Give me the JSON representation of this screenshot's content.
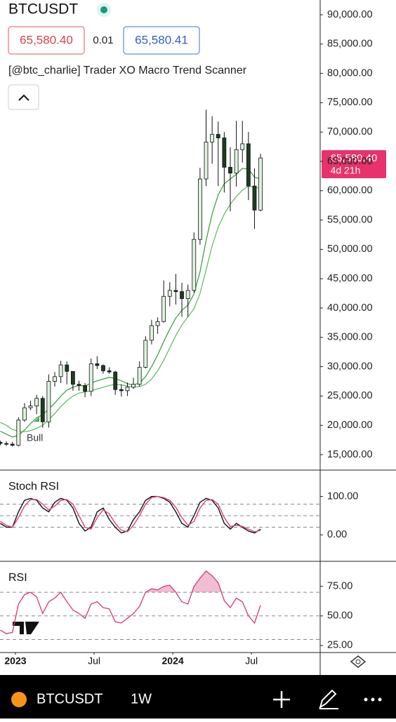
{
  "header": {
    "symbol": "BTCUSDT",
    "bid": "65,580.40",
    "spread": "0.01",
    "ask": "65,580.41",
    "indicator": "[@btc_charlie] Trader XO Macro Trend Scanner",
    "last_price": "65,580.40",
    "countdown": "4d 21h"
  },
  "chart_data": [
    {
      "type": "candlestick",
      "annotation": "Bull",
      "x": [
        -5,
        -3,
        -1,
        1,
        3,
        5,
        7,
        9,
        11,
        13,
        15,
        17,
        19,
        21,
        23,
        25,
        27,
        29,
        31,
        33,
        35,
        37,
        39,
        41,
        43,
        45,
        47,
        49,
        51,
        53,
        55,
        57,
        59,
        61,
        63,
        65,
        67,
        69,
        71,
        73,
        75,
        77,
        79,
        81
      ],
      "open": [
        17100,
        16900,
        16800,
        16600,
        20900,
        23000,
        23300,
        24600,
        20600,
        27500,
        28300,
        30300,
        29200,
        27000,
        26800,
        25800,
        30500,
        30200,
        29300,
        29100,
        26100,
        25900,
        26500,
        27000,
        29900,
        34500,
        37000,
        37700,
        42000,
        43000,
        42800,
        41600,
        43000,
        51700,
        62000,
        68300,
        69600,
        69000,
        64000,
        63000,
        67000,
        68000,
        60800,
        56700
      ],
      "high": [
        17400,
        17300,
        17200,
        21400,
        23800,
        24200,
        25200,
        25000,
        28700,
        29100,
        31000,
        30900,
        28500,
        27600,
        27200,
        31400,
        31800,
        30400,
        29900,
        29300,
        27000,
        27300,
        28100,
        30900,
        35200,
        38000,
        38400,
        44700,
        44400,
        45800,
        44300,
        44000,
        52900,
        63900,
        73800,
        72700,
        71800,
        70000,
        67400,
        71900,
        71900,
        70000,
        63800,
        66300
      ],
      "low": [
        16600,
        16500,
        16400,
        16400,
        20600,
        22600,
        21900,
        19600,
        19600,
        26600,
        27200,
        27000,
        25900,
        25900,
        24800,
        25000,
        29600,
        28800,
        28800,
        25200,
        24900,
        25000,
        26200,
        26600,
        29700,
        33800,
        35600,
        37500,
        40300,
        40600,
        38500,
        38500,
        42600,
        50800,
        60800,
        64600,
        60800,
        59700,
        56500,
        60700,
        64800,
        58400,
        53500,
        56500
      ],
      "close": [
        16900,
        16800,
        16600,
        20900,
        23000,
        23300,
        24600,
        20600,
        27500,
        28300,
        30300,
        29200,
        27000,
        26800,
        25800,
        30500,
        30200,
        29300,
        29100,
        26100,
        25900,
        26500,
        27000,
        29900,
        34500,
        37000,
        37700,
        42000,
        43000,
        42800,
        41600,
        43000,
        51700,
        62000,
        68300,
        69600,
        69000,
        64000,
        63000,
        67000,
        68000,
        60800,
        56700,
        65580
      ],
      "up_color": "#dff3df",
      "down_color": "#1c3d1f",
      "series": [
        {
          "color": "#43a047",
          "values": [
            19000,
            18500,
            18000,
            18300,
            19200,
            20300,
            21300,
            21800,
            22800,
            23800,
            25000,
            26000,
            26500,
            26800,
            26700,
            27200,
            27600,
            27900,
            28200,
            28000,
            27600,
            27100,
            26900,
            27200,
            28300,
            30000,
            32000,
            34300,
            36400,
            38300,
            39600,
            40500,
            42400,
            46200,
            51500,
            56000,
            59300,
            61200,
            62000,
            62800,
            63800,
            63700,
            62300,
            62000
          ]
        },
        {
          "color": "#66bb6a",
          "values": [
            20500,
            20000,
            19300,
            19000,
            18900,
            19100,
            19500,
            20000,
            21000,
            22000,
            23200,
            24200,
            25000,
            25500,
            25700,
            25900,
            26200,
            26500,
            26800,
            27000,
            26900,
            26700,
            26500,
            26600,
            27000,
            27900,
            29300,
            31100,
            33200,
            35300,
            37100,
            38500,
            39900,
            42500,
            46500,
            50600,
            53800,
            56000,
            57700,
            59000,
            60100,
            60800,
            60600,
            60400
          ]
        }
      ],
      "xlim": [
        -5.1,
        100.7
      ],
      "xticks": [
        {
          "value": 0,
          "label": "2023"
        },
        {
          "value": 26,
          "label": "Jul"
        },
        {
          "value": 52,
          "label": "2024"
        },
        {
          "value": 78,
          "label": "Jul"
        }
      ],
      "ylim": [
        12370,
        92510
      ],
      "yticks": [
        {
          "value": 90000,
          "label": "90,000.00"
        },
        {
          "value": 85000,
          "label": "85,000.00"
        },
        {
          "value": 80000,
          "label": "80,000.00"
        },
        {
          "value": 75000,
          "label": "75,000.00"
        },
        {
          "value": 70000,
          "label": "70,000.00"
        },
        {
          "value": 65000,
          "label": "65,000.00"
        },
        {
          "value": 60000,
          "label": "60,000.00"
        },
        {
          "value": 55000,
          "label": "55,000.00"
        },
        {
          "value": 50000,
          "label": "50,000.00"
        },
        {
          "value": 45000,
          "label": "45,000.00"
        },
        {
          "value": 40000,
          "label": "40,000.00"
        },
        {
          "value": 35000,
          "label": "35,000.00"
        },
        {
          "value": 30000,
          "label": "30,000.00"
        },
        {
          "value": 25000,
          "label": "25,000.00"
        },
        {
          "value": 20000,
          "label": "20,000.00"
        },
        {
          "value": 15000,
          "label": "15,000.00"
        }
      ]
    },
    {
      "type": "line",
      "title": "Stoch RSI",
      "ylim": [
        -67,
        165
      ],
      "hlines": [
        80,
        50,
        20
      ],
      "yticks": [
        {
          "value": 100,
          "label": "100.00"
        },
        {
          "value": 0,
          "label": "0.00"
        }
      ],
      "series": [
        {
          "color": "#111111",
          "values": [
            30,
            20,
            20,
            60,
            90,
            95,
            90,
            70,
            60,
            85,
            95,
            90,
            70,
            30,
            10,
            20,
            60,
            70,
            40,
            20,
            5,
            10,
            40,
            60,
            90,
            100,
            100,
            95,
            85,
            60,
            30,
            20,
            50,
            85,
            95,
            90,
            70,
            30,
            15,
            30,
            20,
            10,
            5,
            15
          ]
        },
        {
          "color": "#e0407a",
          "values": [
            35,
            25,
            20,
            45,
            75,
            92,
            92,
            80,
            65,
            75,
            90,
            92,
            80,
            50,
            20,
            15,
            45,
            65,
            55,
            30,
            12,
            8,
            25,
            50,
            80,
            97,
            100,
            97,
            90,
            72,
            45,
            25,
            35,
            70,
            90,
            92,
            80,
            45,
            22,
            25,
            22,
            15,
            8,
            12
          ]
        }
      ]
    },
    {
      "type": "area",
      "title": "RSI",
      "ylim": [
        19,
        95
      ],
      "hlines": [
        70,
        50,
        30
      ],
      "threshold": 70,
      "yticks": [
        {
          "value": 75,
          "label": "75.00"
        },
        {
          "value": 50,
          "label": "50.00"
        },
        {
          "value": 25,
          "label": "25.00"
        }
      ],
      "series": [
        {
          "color": "#d6427f",
          "values": [
            38,
            35,
            36,
            60,
            68,
            70,
            66,
            52,
            62,
            65,
            70,
            62,
            55,
            52,
            48,
            60,
            62,
            57,
            56,
            45,
            44,
            48,
            52,
            58,
            70,
            73,
            72,
            75,
            76,
            70,
            62,
            60,
            75,
            82,
            88,
            84,
            78,
            63,
            57,
            65,
            62,
            50,
            44,
            59
          ]
        }
      ]
    }
  ],
  "footer": {
    "symbol": "BTCUSDT",
    "interval": "1W"
  }
}
